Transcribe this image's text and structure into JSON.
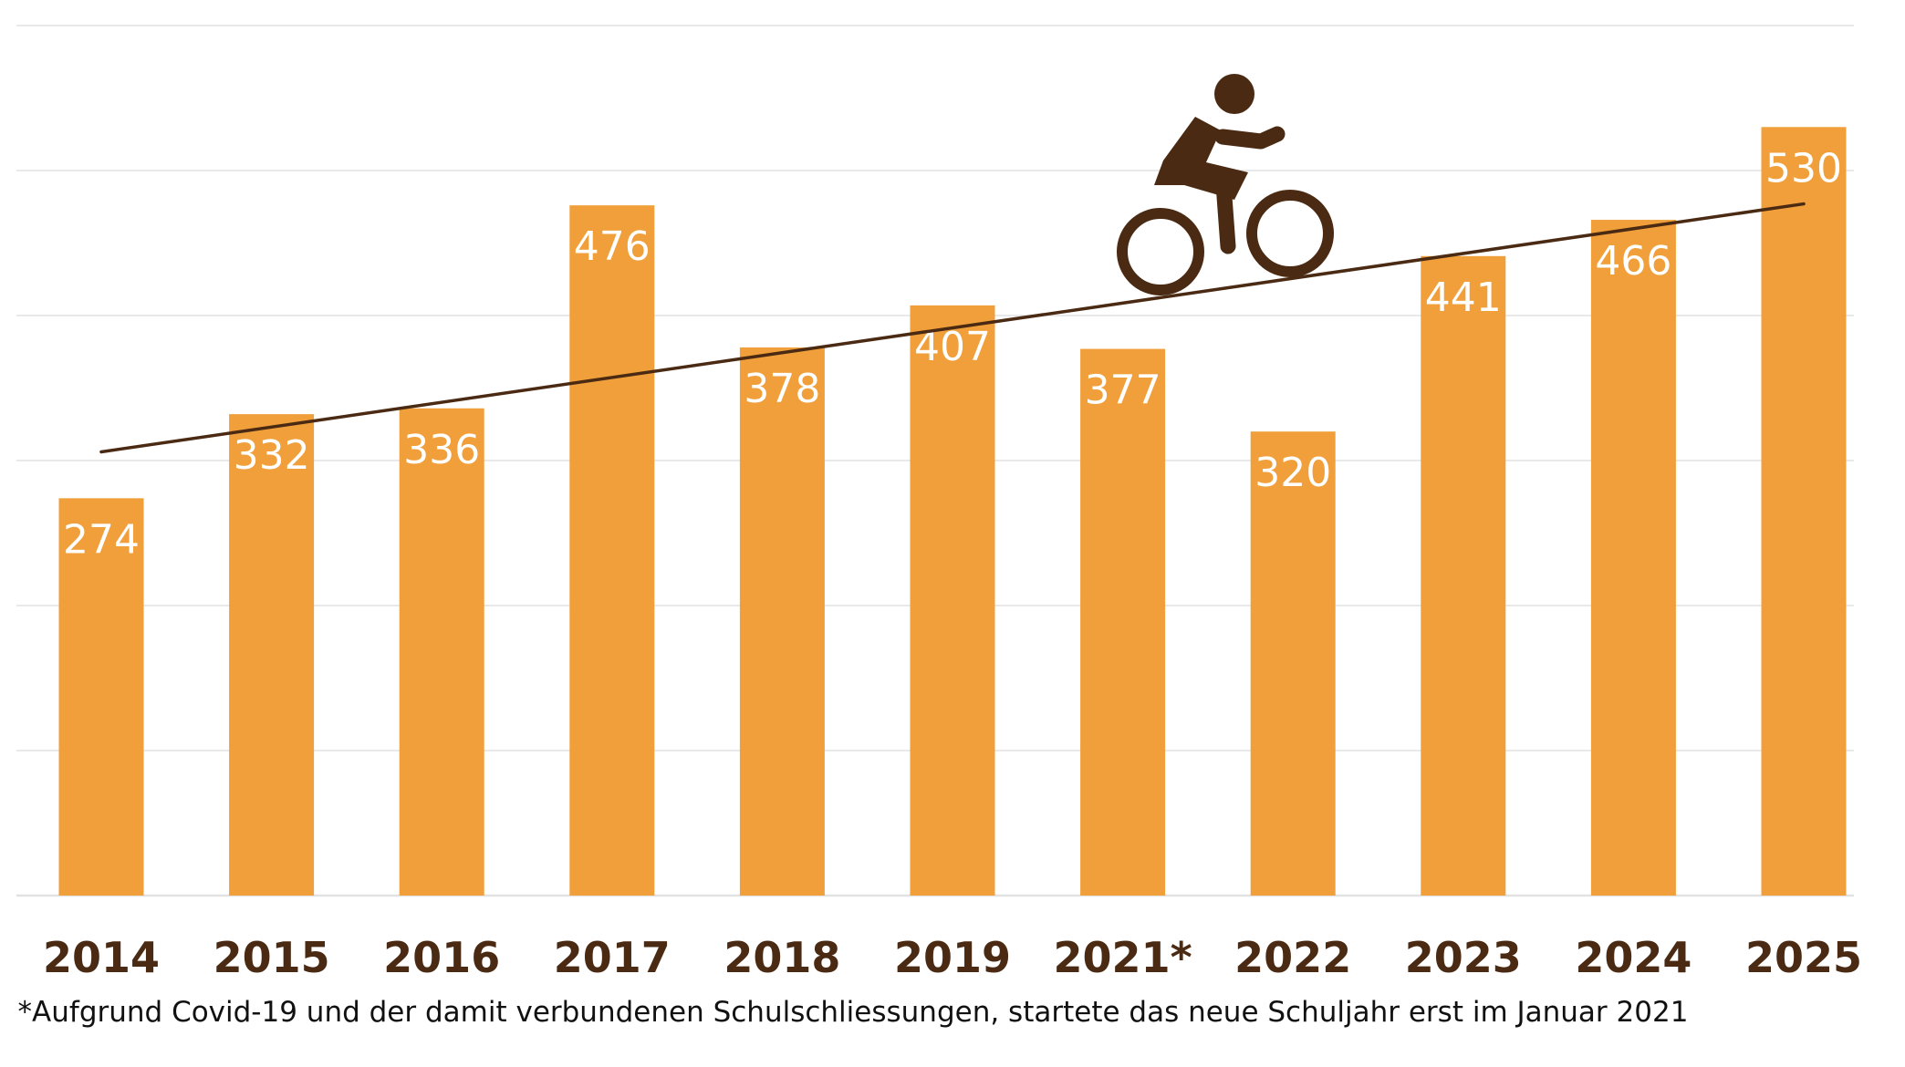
{
  "chart_data": {
    "type": "bar",
    "categories": [
      "2014",
      "2015",
      "2016",
      "2017",
      "2018",
      "2019",
      "2021*",
      "2022",
      "2023",
      "2024",
      "2025"
    ],
    "values": [
      274,
      332,
      336,
      476,
      378,
      407,
      377,
      320,
      441,
      466,
      530
    ],
    "ylim": [
      0,
      600
    ],
    "gridlines": [
      0,
      100,
      200,
      300,
      400,
      500,
      600
    ],
    "trendline": {
      "start": 306,
      "end": 477
    },
    "title": "",
    "xlabel": "",
    "ylabel": "",
    "footnote": "*Aufgrund Covid-19 und der damit verbundenen Schulschliessungen, startete das neue Schuljahr erst im Januar 2021"
  },
  "colors": {
    "bar": "#f09f3a",
    "label_text": "#ffffff",
    "category_text": "#4a2a12",
    "trendline": "#4a2a12",
    "icon": "#4a2a12",
    "grid": "#e2e2e2"
  },
  "icon": "cyclist-icon"
}
